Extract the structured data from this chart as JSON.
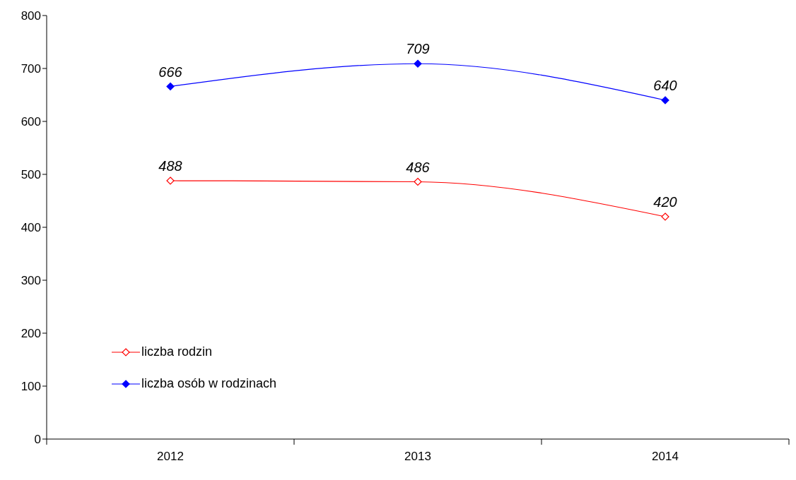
{
  "chart_data": {
    "type": "line",
    "categories": [
      "2012",
      "2013",
      "2014"
    ],
    "series": [
      {
        "name": "liczba rodzin",
        "color": "#ff0000",
        "values": [
          488,
          486,
          420
        ]
      },
      {
        "name": "liczba osób w rodzinach",
        "color": "#0000ff",
        "values": [
          666,
          709,
          640
        ]
      }
    ],
    "ylim": [
      0,
      800
    ],
    "yticks": [
      0,
      100,
      200,
      300,
      400,
      500,
      600,
      700,
      800
    ],
    "grid": false,
    "legend": "bottom left",
    "marker": "diamond",
    "line_style": "solid",
    "data_labels": true
  }
}
